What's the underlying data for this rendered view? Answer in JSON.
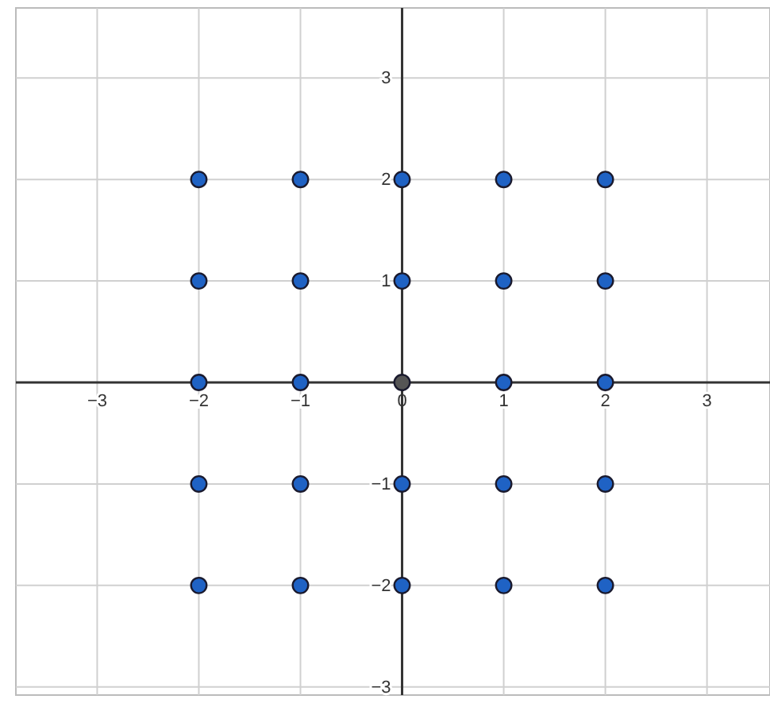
{
  "chart_data": {
    "type": "scatter",
    "xlim": [
      -3.8,
      3.62
    ],
    "ylim": [
      -3.08,
      3.69
    ],
    "xticks": [
      -3,
      -2,
      -1,
      0,
      1,
      2,
      3
    ],
    "yticks": [
      -3,
      -2,
      -1,
      {
        "value": 0,
        "label": null
      },
      1,
      2,
      3
    ],
    "grid": true,
    "marker": "circle",
    "series": [
      {
        "color": "#1f62c4",
        "x": [
          -2,
          -1,
          0,
          1,
          2,
          -2,
          -1,
          0,
          1,
          2,
          -2,
          -1,
          1,
          2,
          -2,
          -1,
          0,
          1,
          2,
          -2,
          -1,
          0,
          1,
          2
        ],
        "values": [
          2,
          2,
          2,
          2,
          2,
          1,
          1,
          1,
          1,
          1,
          0,
          0,
          0,
          0,
          -1,
          -1,
          -1,
          -1,
          -1,
          -2,
          -2,
          -2,
          -2,
          -2
        ]
      },
      {
        "color": "#555555",
        "x": [
          0
        ],
        "values": [
          0
        ]
      }
    ]
  }
}
